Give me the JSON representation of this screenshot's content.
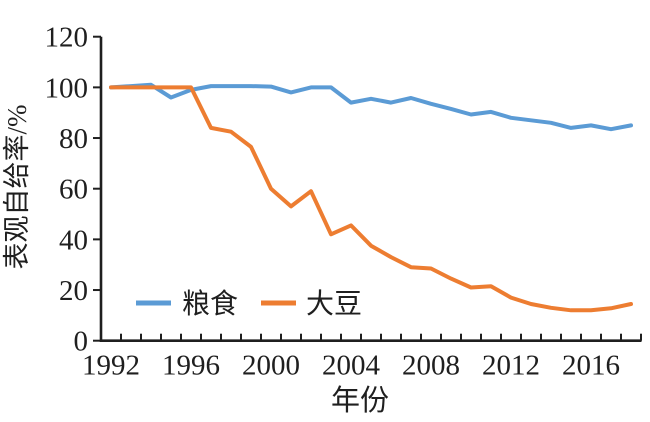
{
  "chart_data": {
    "type": "line",
    "title": "",
    "xlabel": "年份",
    "ylabel": "表观自给率/%",
    "x": [
      1992,
      1993,
      1994,
      1995,
      1996,
      1997,
      1998,
      1999,
      2000,
      2001,
      2002,
      2003,
      2004,
      2005,
      2006,
      2007,
      2008,
      2009,
      2010,
      2011,
      2012,
      2013,
      2014,
      2015,
      2016,
      2017,
      2018
    ],
    "series": [
      {
        "name": "粮食",
        "color": "#5B9BD5",
        "values": [
          100,
          100.5,
          101,
          96,
          99,
          100.5,
          100.5,
          100.5,
          100.3,
          98,
          100,
          100,
          94,
          95.5,
          94,
          95.8,
          93.5,
          91.5,
          89.3,
          90.3,
          88,
          87,
          86,
          84,
          85,
          83.5,
          85
        ]
      },
      {
        "name": "大豆",
        "color": "#ED7D31",
        "values": [
          100,
          100,
          100,
          100,
          100,
          84,
          82.5,
          76.5,
          60,
          53,
          59,
          42,
          45.5,
          37.5,
          33,
          29,
          28.5,
          24.5,
          21,
          21.5,
          17,
          14.5,
          13,
          12,
          12,
          12.8,
          14.5
        ]
      }
    ],
    "x_tick_labels": [
      "1992",
      "1996",
      "2000",
      "2004",
      "2008",
      "2012",
      "2016"
    ],
    "x_minor_tick_every_years": 1,
    "y_ticks": [
      0,
      20,
      40,
      60,
      80,
      100,
      120
    ],
    "ylim": [
      0,
      120
    ],
    "grid": false,
    "legend_position": "inside-bottom-left",
    "axis_color": "#1f1f1f",
    "text_color": "#1f1f1f"
  }
}
